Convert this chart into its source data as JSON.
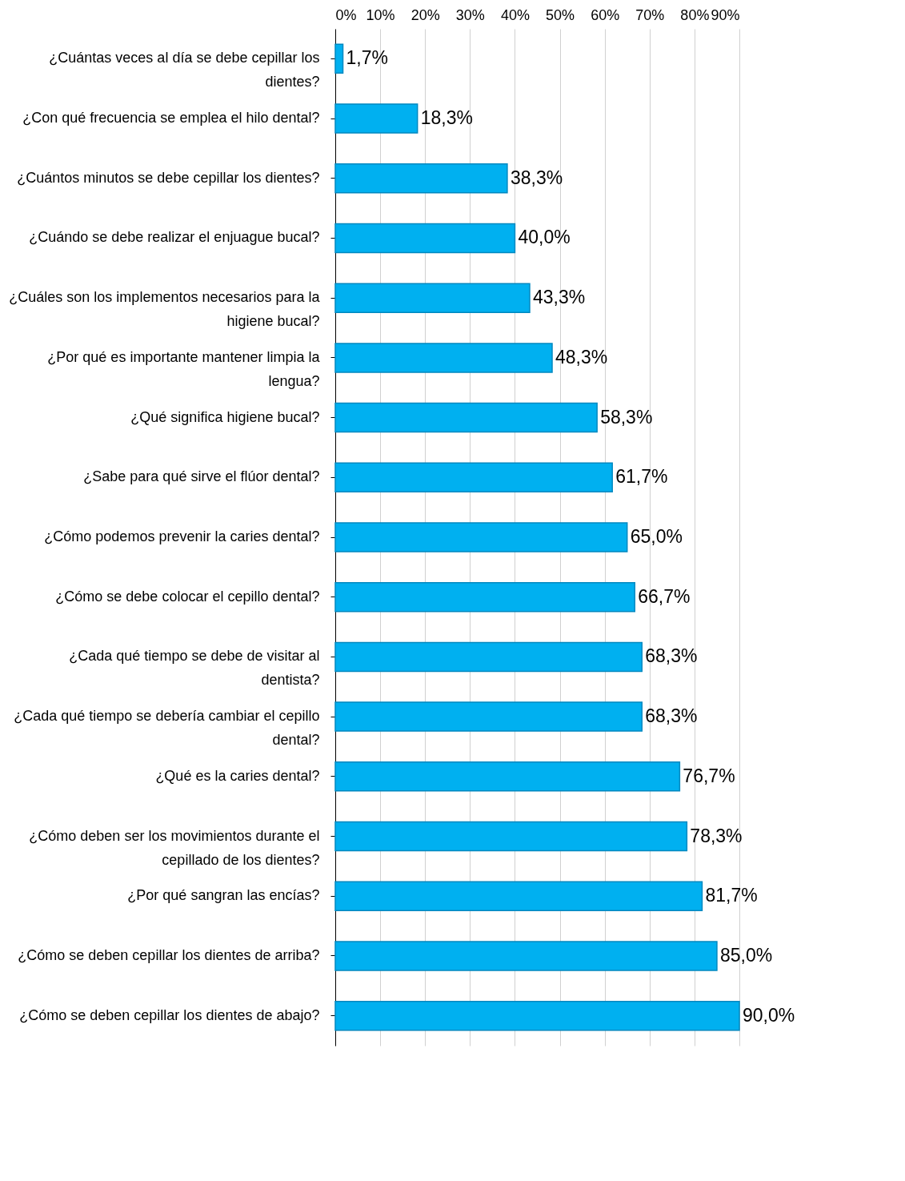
{
  "chart_data": {
    "type": "bar",
    "orientation": "horizontal",
    "categories": [
      "¿Cuántas veces al día se debe cepillar los dientes?",
      "¿Con qué frecuencia se emplea el hilo dental?",
      "¿Cuántos minutos se debe cepillar los dientes?",
      "¿Cuándo se debe realizar el enjuague bucal?",
      "¿Cuáles son los implementos necesarios para la higiene bucal?",
      "¿Por qué es importante mantener limpia la lengua?",
      "¿Qué significa higiene bucal?",
      "¿Sabe para qué sirve el flúor dental?",
      "¿Cómo podemos prevenir la caries dental?",
      "¿Cómo se debe colocar el cepillo dental?",
      "¿Cada qué tiempo se debe de visitar al dentista?",
      "¿Cada qué tiempo se debería cambiar el cepillo dental?",
      "¿Qué es la caries dental?",
      "¿Cómo deben ser los movimientos durante el cepillado de los dientes?",
      "¿Por qué sangran las encías?",
      "¿Cómo se deben cepillar los dientes de arriba?",
      "¿Cómo se deben cepillar los dientes de abajo?"
    ],
    "values": [
      1.7,
      18.3,
      38.3,
      40.0,
      43.3,
      48.3,
      58.3,
      61.7,
      65.0,
      66.7,
      68.3,
      68.3,
      76.7,
      78.3,
      81.7,
      85.0,
      90.0
    ],
    "value_labels": [
      "1,7%",
      "18,3%",
      "38,3%",
      "40,0%",
      "43,3%",
      "48,3%",
      "58,3%",
      "61,7%",
      "65,0%",
      "66,7%",
      "68,3%",
      "68,3%",
      "76,7%",
      "78,3%",
      "81,7%",
      "85,0%",
      "90,0%"
    ],
    "color": "#00b0f0",
    "xlim": [
      0,
      90
    ],
    "xticks": [
      {
        "value": 0,
        "label": "0%"
      },
      {
        "value": 10,
        "label": "10%"
      },
      {
        "value": 20,
        "label": "20%"
      },
      {
        "value": 30,
        "label": "30%"
      },
      {
        "value": 40,
        "label": "40%"
      },
      {
        "value": 50,
        "label": "50%"
      },
      {
        "value": 60,
        "label": "60%"
      },
      {
        "value": 70,
        "label": "70%"
      },
      {
        "value": 80,
        "label": "80%"
      },
      {
        "value": 90,
        "label": "90%"
      }
    ],
    "grid": "x"
  }
}
